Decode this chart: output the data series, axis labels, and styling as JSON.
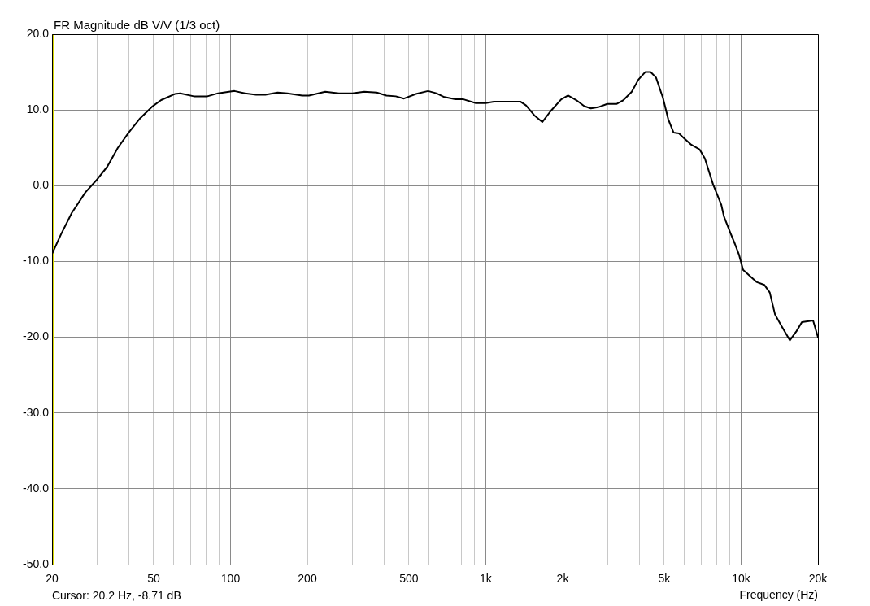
{
  "chart_data": {
    "type": "line",
    "title": "FR Magnitude dB V/V (1/3 oct)",
    "xlabel": "Frequency (Hz)",
    "annotations": [
      "Cursor: 20.2 Hz, -8.71 dB"
    ],
    "x": [
      20,
      21.7,
      23.9,
      27,
      29.8,
      32.9,
      36.2,
      39.9,
      44,
      49.2,
      53.5,
      60.5,
      63.6,
      71.8,
      81.2,
      89.4,
      103.6,
      114,
      126,
      137,
      153,
      167,
      191,
      203,
      235,
      266,
      300,
      334,
      374,
      408,
      444,
      478,
      532,
      594,
      640,
      688,
      760,
      818,
      914,
      998,
      1075,
      1366,
      1438,
      1548,
      1664,
      1790,
      1974,
      2100,
      2260,
      2430,
      2580,
      2780,
      2990,
      3260,
      3460,
      3730,
      3960,
      4210,
      4420,
      4640,
      4940,
      5180,
      5440,
      5710,
      5920,
      6380,
      6870,
      7210,
      7760,
      8360,
      8570,
      9120,
      9460,
      9810,
      10180,
      11480,
      12340,
      12950,
      13580,
      14440,
      15520,
      16480,
      17300,
      19140,
      20000
    ],
    "values": [
      -9.0,
      -6.4,
      -3.6,
      -0.9,
      0.7,
      2.5,
      5.0,
      7.0,
      8.8,
      10.4,
      11.3,
      12.1,
      12.2,
      11.8,
      11.8,
      12.2,
      12.5,
      12.2,
      12.0,
      12.0,
      12.3,
      12.2,
      11.9,
      11.9,
      12.4,
      12.2,
      12.2,
      12.4,
      12.3,
      11.9,
      11.8,
      11.5,
      12.1,
      12.5,
      12.2,
      11.7,
      11.4,
      11.4,
      10.9,
      10.9,
      11.1,
      11.1,
      10.6,
      9.3,
      8.4,
      9.8,
      11.4,
      11.9,
      11.3,
      10.5,
      10.2,
      10.4,
      10.8,
      10.8,
      11.3,
      12.4,
      14.0,
      15.0,
      15.0,
      14.3,
      11.6,
      8.8,
      7.0,
      6.9,
      6.4,
      5.4,
      4.8,
      3.6,
      0.2,
      -2.5,
      -4.1,
      -6.4,
      -7.7,
      -9.1,
      -11.1,
      -12.7,
      -13.1,
      -14.1,
      -17.0,
      -18.6,
      -20.4,
      -19.2,
      -18.0,
      -17.8,
      -20.0
    ],
    "color": "#000000",
    "marker": "none",
    "log": "x",
    "xlim": [
      20,
      20000
    ],
    "xticks": [
      20,
      {
        "value": 30,
        "label": null
      },
      {
        "value": 40,
        "label": null
      },
      50,
      {
        "value": 60,
        "label": null
      },
      {
        "value": 70,
        "label": null
      },
      {
        "value": 80,
        "label": null
      },
      {
        "value": 90,
        "label": null
      },
      100,
      200,
      {
        "value": 300,
        "label": null
      },
      {
        "value": 400,
        "label": null
      },
      500,
      {
        "value": 600,
        "label": null
      },
      {
        "value": 700,
        "label": null
      },
      {
        "value": 800,
        "label": null
      },
      {
        "value": 900,
        "label": null
      },
      {
        "value": 1000,
        "label": "1k"
      },
      {
        "value": 2000,
        "label": "2k"
      },
      {
        "value": 3000,
        "label": null
      },
      {
        "value": 4000,
        "label": null
      },
      {
        "value": 5000,
        "label": "5k"
      },
      {
        "value": 6000,
        "label": null
      },
      {
        "value": 7000,
        "label": null
      },
      {
        "value": 8000,
        "label": null
      },
      {
        "value": 9000,
        "label": null
      },
      {
        "value": 10000,
        "label": "10k"
      },
      {
        "value": 20000,
        "label": "20k"
      }
    ],
    "ylim": [
      -50,
      20
    ],
    "yticks": [
      {
        "value": -50,
        "label": "-50.0"
      },
      {
        "value": -40,
        "label": "-40.0"
      },
      {
        "value": -30,
        "label": "-30.0"
      },
      {
        "value": -20,
        "label": "-20.0"
      },
      {
        "value": -10,
        "label": "-10.0"
      },
      {
        "value": 0,
        "label": "0.0"
      },
      {
        "value": 10,
        "label": "10.0"
      },
      {
        "value": 20,
        "label": "20.0"
      }
    ],
    "ref_lines": [
      {
        "axis": "x",
        "value": 20.2,
        "color": "#d8d800"
      }
    ],
    "grid": true,
    "legend": false
  }
}
